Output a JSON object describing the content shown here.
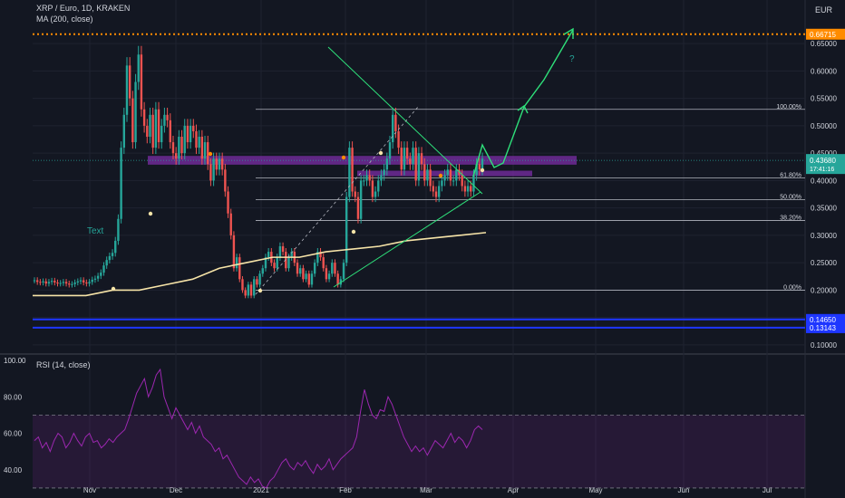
{
  "header": {
    "symbol_line": "XRP / Euro, 1D, KRAKEN",
    "ma_line": "MA (200, close)",
    "rsi_line": "RSI (14, close)",
    "currency": "EUR"
  },
  "annotations": {
    "text_label": "Text",
    "question_mark": "?"
  },
  "colors": {
    "background": "#131722",
    "candle_up": "#26a69a",
    "candle_down": "#ef5350",
    "ma": "#f7e4a8",
    "zone": "#7b2ea6",
    "rsi": "#9c27b0",
    "projection": "#2ee07a",
    "orange_level": "#ff8c00",
    "blue_level": "#1e36ff"
  },
  "chart_data": [
    {
      "type": "candlestick",
      "title": "XRP / Euro, 1D, KRAKEN",
      "ylim": [
        0.085,
        0.68
      ],
      "y_ticks": [
        "0.10000",
        "0.15000",
        "0.20000",
        "0.25000",
        "0.30000",
        "0.35000",
        "0.40000",
        "0.45000",
        "0.50000",
        "0.55000",
        "0.60000",
        "0.65000"
      ],
      "x_ticks": [
        "Nov",
        "Dec",
        "2021",
        "Feb",
        "Mar",
        "Apr",
        "May",
        "Jun",
        "Jul"
      ],
      "grid": true,
      "price_series_close": [
        0.218,
        0.215,
        0.214,
        0.216,
        0.212,
        0.215,
        0.217,
        0.214,
        0.212,
        0.213,
        0.215,
        0.212,
        0.21,
        0.211,
        0.214,
        0.216,
        0.218,
        0.214,
        0.212,
        0.215,
        0.219,
        0.221,
        0.226,
        0.232,
        0.245,
        0.255,
        0.262,
        0.268,
        0.29,
        0.33,
        0.46,
        0.52,
        0.61,
        0.55,
        0.47,
        0.58,
        0.63,
        0.53,
        0.5,
        0.48,
        0.52,
        0.46,
        0.53,
        0.47,
        0.5,
        0.52,
        0.51,
        0.47,
        0.45,
        0.44,
        0.48,
        0.45,
        0.5,
        0.47,
        0.5,
        0.49,
        0.46,
        0.48,
        0.44,
        0.47,
        0.43,
        0.4,
        0.44,
        0.42,
        0.44,
        0.42,
        0.38,
        0.34,
        0.3,
        0.24,
        0.26,
        0.22,
        0.2,
        0.19,
        0.21,
        0.19,
        0.22,
        0.21,
        0.23,
        0.24,
        0.26,
        0.27,
        0.25,
        0.24,
        0.26,
        0.28,
        0.27,
        0.24,
        0.26,
        0.27,
        0.25,
        0.23,
        0.24,
        0.22,
        0.23,
        0.21,
        0.23,
        0.25,
        0.27,
        0.26,
        0.24,
        0.22,
        0.23,
        0.25,
        0.23,
        0.21,
        0.22,
        0.25,
        0.37,
        0.46,
        0.38,
        0.37,
        0.33,
        0.4,
        0.4,
        0.41,
        0.4,
        0.37,
        0.38,
        0.4,
        0.41,
        0.42,
        0.44,
        0.47,
        0.52,
        0.49,
        0.46,
        0.42,
        0.46,
        0.44,
        0.43,
        0.46,
        0.4,
        0.45,
        0.43,
        0.4,
        0.42,
        0.39,
        0.38,
        0.37,
        0.39,
        0.4,
        0.41,
        0.42,
        0.4,
        0.4,
        0.42,
        0.41,
        0.39,
        0.38,
        0.39,
        0.38,
        0.41,
        0.43,
        0.42,
        0.44
      ],
      "moving_average_200": [
        0.19,
        0.19,
        0.19,
        0.2,
        0.2,
        0.21,
        0.22,
        0.24,
        0.25,
        0.26,
        0.26,
        0.27,
        0.275,
        0.28,
        0.29,
        0.295,
        0.3,
        0.305
      ],
      "current_price": "0.43680",
      "countdown": "17:41:16",
      "horizontal_levels": [
        {
          "label": "0.66715",
          "value": 0.66715,
          "style": "dotted-orange"
        },
        {
          "label": "0.14650",
          "value": 0.1465,
          "style": "solid-blue"
        },
        {
          "label": "0.13143",
          "value": 0.13143,
          "style": "solid-blue"
        }
      ],
      "fibonacci": [
        {
          "label": "100.00%",
          "value": 0.53
        },
        {
          "label": "61.80%",
          "value": 0.405
        },
        {
          "label": "50.00%",
          "value": 0.365
        },
        {
          "label": "38.20%",
          "value": 0.327
        },
        {
          "label": "0.00%",
          "value": 0.2
        }
      ],
      "zones": [
        {
          "from": 0.429,
          "to": 0.445
        },
        {
          "from": 0.408,
          "to": 0.418
        }
      ]
    },
    {
      "type": "line",
      "title": "RSI (14, close)",
      "ylim": [
        27,
        100
      ],
      "y_ticks": [
        "40.00",
        "60.00",
        "80.00",
        "100.00"
      ],
      "bands": [
        30,
        70
      ],
      "values": [
        56,
        58,
        52,
        55,
        50,
        56,
        60,
        58,
        52,
        55,
        60,
        56,
        53,
        58,
        60,
        55,
        56,
        52,
        54,
        57,
        55,
        58,
        60,
        62,
        68,
        75,
        82,
        86,
        90,
        80,
        85,
        92,
        95,
        80,
        74,
        68,
        74,
        70,
        66,
        62,
        66,
        60,
        64,
        58,
        56,
        54,
        50,
        52,
        46,
        48,
        44,
        40,
        36,
        34,
        32,
        36,
        33,
        35,
        31,
        30,
        34,
        36,
        40,
        44,
        46,
        42,
        40,
        44,
        42,
        45,
        41,
        38,
        43,
        40,
        42,
        46,
        40,
        43,
        46,
        48,
        50,
        52,
        58,
        72,
        84,
        76,
        70,
        68,
        73,
        72,
        80,
        76,
        70,
        64,
        58,
        54,
        50,
        53,
        50,
        52,
        48,
        52,
        56,
        54,
        52,
        56,
        60,
        55,
        58,
        56,
        52,
        56,
        62,
        64,
        62
      ]
    }
  ]
}
